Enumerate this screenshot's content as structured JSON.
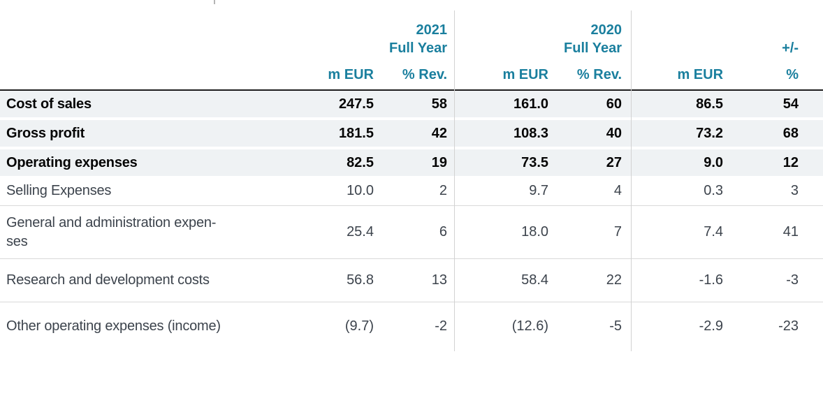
{
  "table": {
    "groups": [
      {
        "year": "2021",
        "period": "Full Year"
      },
      {
        "year": "2020",
        "period": "Full Year"
      },
      {
        "year": "",
        "period": "+/-"
      }
    ],
    "column_headers": [
      "m EUR",
      "% Rev.",
      "m EUR",
      "% Rev.",
      "m EUR",
      "%"
    ],
    "rows": [
      {
        "label": "Cost of sales",
        "emphasis": true,
        "values": [
          "247.5",
          "58",
          "161.0",
          "60",
          "86.5",
          "54"
        ]
      },
      {
        "label": "Gross profit",
        "emphasis": true,
        "values": [
          "181.5",
          "42",
          "108.3",
          "40",
          "73.2",
          "68"
        ]
      },
      {
        "label": "Operating expenses",
        "emphasis": true,
        "values": [
          "82.5",
          "19",
          "73.5",
          "27",
          "9.0",
          "12"
        ]
      },
      {
        "label": "Selling Expenses",
        "emphasis": false,
        "values": [
          "10.0",
          "2",
          "9.7",
          "4",
          "0.3",
          "3"
        ]
      },
      {
        "label": "General and administration expen-\nses",
        "emphasis": false,
        "values": [
          "25.4",
          "6",
          "18.0",
          "7",
          "7.4",
          "41"
        ]
      },
      {
        "label": "Research and development costs",
        "emphasis": false,
        "values": [
          "56.8",
          "13",
          "58.4",
          "22",
          "-1.6",
          "-3"
        ]
      },
      {
        "label": "Other operating expenses (income)",
        "emphasis": false,
        "values": [
          "(9.7)",
          "-2",
          "(12.6)",
          "-5",
          "-2.9",
          "-23"
        ]
      }
    ],
    "colors": {
      "header_text": "#1A7F9E",
      "emphasis_row_background": "#EFF2F4",
      "header_rule": "#1D1D1D",
      "row_separator": "#D9D9D9",
      "column_divider": "#D2D2D2",
      "body_text": "#3C434C",
      "emphasis_text": "#050505"
    }
  }
}
